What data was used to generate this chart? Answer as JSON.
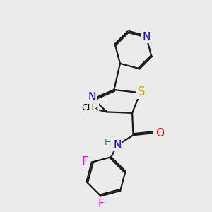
{
  "background_color": "#ebebeb",
  "atom_colors": {
    "C": "#000000",
    "N": "#0000ee",
    "S": "#ccaa00",
    "O": "#ff0000",
    "F": "#ee00ee",
    "H": "#008888"
  },
  "bond_color": "#1a1a1a",
  "bond_width": 1.6,
  "font_size_atom": 10,
  "xlim": [
    0,
    10
  ],
  "ylim": [
    0,
    10
  ]
}
